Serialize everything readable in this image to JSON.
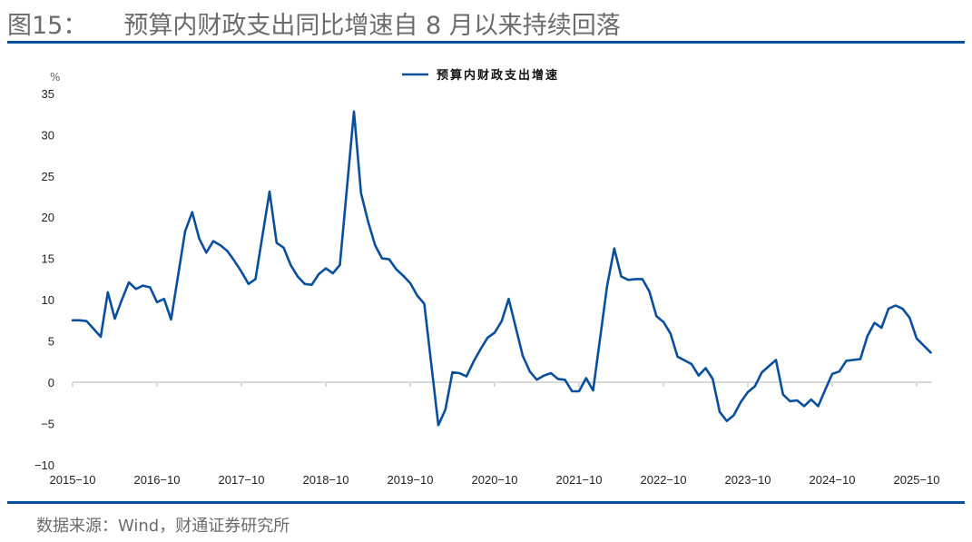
{
  "header": {
    "figure_no": "图15：",
    "title": "预算内财政支出同比增速自 8 月以来持续回落"
  },
  "footer": {
    "source": "数据来源：Wind，财通证券研究所"
  },
  "colors": {
    "series": "#0a4f9c",
    "rule": "#0a4f9c",
    "axis": "#d9d9d9",
    "title_text": "#6b6b6b"
  },
  "chart_data": {
    "type": "line",
    "title": "预算内财政支出同比增速自 8 月以来持续回落",
    "xlabel": "",
    "ylabel": "%",
    "ylim": [
      -10,
      35
    ],
    "yticks": [
      35,
      30,
      25,
      20,
      15,
      10,
      5,
      0,
      -5,
      -10
    ],
    "xticks": [
      "2015-10",
      "2016-10",
      "2017-10",
      "2018-10",
      "2019-10",
      "2020-10",
      "2021-10",
      "2022-10",
      "2023-10",
      "2024-10",
      "2025-10"
    ],
    "grid": false,
    "legend_position": "top-center",
    "series": [
      {
        "name": "预算内财政支出增速",
        "color": "#0a4f9c",
        "points": [
          [
            "2015-10",
            7.5
          ],
          [
            "2015-11",
            7.5
          ],
          [
            "2015-12",
            7.4
          ],
          [
            "2016-02",
            5.5
          ],
          [
            "2016-03",
            10.9
          ],
          [
            "2016-04",
            7.7
          ],
          [
            "2016-05",
            10.0
          ],
          [
            "2016-06",
            12.1
          ],
          [
            "2016-07",
            11.3
          ],
          [
            "2016-08",
            11.7
          ],
          [
            "2016-09",
            11.5
          ],
          [
            "2016-10",
            9.7
          ],
          [
            "2016-11",
            10.1
          ],
          [
            "2016-12",
            7.6
          ],
          [
            "2017-02",
            18.3
          ],
          [
            "2017-03",
            20.6
          ],
          [
            "2017-04",
            17.4
          ],
          [
            "2017-05",
            15.7
          ],
          [
            "2017-06",
            17.1
          ],
          [
            "2017-07",
            16.6
          ],
          [
            "2017-08",
            15.9
          ],
          [
            "2017-09",
            14.7
          ],
          [
            "2017-10",
            13.4
          ],
          [
            "2017-11",
            11.9
          ],
          [
            "2017-12",
            12.5
          ],
          [
            "2018-02",
            23.1
          ],
          [
            "2018-03",
            16.9
          ],
          [
            "2018-04",
            16.3
          ],
          [
            "2018-05",
            14.2
          ],
          [
            "2018-06",
            12.8
          ],
          [
            "2018-07",
            11.9
          ],
          [
            "2018-08",
            11.8
          ],
          [
            "2018-09",
            13.1
          ],
          [
            "2018-10",
            13.8
          ],
          [
            "2018-11",
            13.2
          ],
          [
            "2018-12",
            14.2
          ],
          [
            "2019-02",
            32.8
          ],
          [
            "2019-03",
            22.9
          ],
          [
            "2019-04",
            19.5
          ],
          [
            "2019-05",
            16.6
          ],
          [
            "2019-06",
            15.0
          ],
          [
            "2019-07",
            14.9
          ],
          [
            "2019-08",
            13.7
          ],
          [
            "2019-09",
            12.9
          ],
          [
            "2019-10",
            12.0
          ],
          [
            "2019-11",
            10.5
          ],
          [
            "2019-12",
            9.5
          ],
          [
            "2020-02",
            -5.2
          ],
          [
            "2020-03",
            -3.3
          ],
          [
            "2020-04",
            1.2
          ],
          [
            "2020-05",
            1.1
          ],
          [
            "2020-06",
            0.7
          ],
          [
            "2020-07",
            2.5
          ],
          [
            "2020-08",
            4.0
          ],
          [
            "2020-09",
            5.4
          ],
          [
            "2020-10",
            6.0
          ],
          [
            "2020-11",
            7.4
          ],
          [
            "2020-12",
            10.1
          ],
          [
            "2021-02",
            3.2
          ],
          [
            "2021-03",
            1.3
          ],
          [
            "2021-04",
            0.3
          ],
          [
            "2021-05",
            0.8
          ],
          [
            "2021-06",
            1.1
          ],
          [
            "2021-07",
            0.4
          ],
          [
            "2021-08",
            0.3
          ],
          [
            "2021-09",
            -1.1
          ],
          [
            "2021-10",
            -1.1
          ],
          [
            "2021-11",
            0.5
          ],
          [
            "2021-12",
            -1.0
          ],
          [
            "2022-02",
            11.7
          ],
          [
            "2022-03",
            16.2
          ],
          [
            "2022-04",
            12.8
          ],
          [
            "2022-05",
            12.4
          ],
          [
            "2022-06",
            12.5
          ],
          [
            "2022-07",
            12.5
          ],
          [
            "2022-08",
            11.0
          ],
          [
            "2022-09",
            8.0
          ],
          [
            "2022-10",
            7.3
          ],
          [
            "2022-11",
            5.9
          ],
          [
            "2022-12",
            3.1
          ],
          [
            "2023-02",
            2.2
          ],
          [
            "2023-03",
            0.8
          ],
          [
            "2023-04",
            1.7
          ],
          [
            "2023-05",
            0.4
          ],
          [
            "2023-06",
            -3.6
          ],
          [
            "2023-07",
            -4.7
          ],
          [
            "2023-08",
            -4.0
          ],
          [
            "2023-09",
            -2.4
          ],
          [
            "2023-10",
            -1.2
          ],
          [
            "2023-11",
            -0.5
          ],
          [
            "2023-12",
            1.2
          ],
          [
            "2024-02",
            2.7
          ],
          [
            "2024-03",
            -1.5
          ],
          [
            "2024-04",
            -2.3
          ],
          [
            "2024-05",
            -2.2
          ],
          [
            "2024-06",
            -2.9
          ],
          [
            "2024-07",
            -2.1
          ],
          [
            "2024-08",
            -2.9
          ],
          [
            "2024-09",
            -0.9
          ],
          [
            "2024-10",
            1.0
          ],
          [
            "2024-11",
            1.3
          ],
          [
            "2024-12",
            2.6
          ],
          [
            "2025-02",
            2.8
          ],
          [
            "2025-03",
            5.6
          ],
          [
            "2025-04",
            7.2
          ],
          [
            "2025-05",
            6.6
          ],
          [
            "2025-06",
            8.9
          ],
          [
            "2025-07",
            9.3
          ],
          [
            "2025-08",
            8.9
          ],
          [
            "2025-09",
            7.8
          ],
          [
            "2025-10",
            5.3
          ],
          [
            "2025-12",
            3.6
          ]
        ]
      }
    ]
  }
}
